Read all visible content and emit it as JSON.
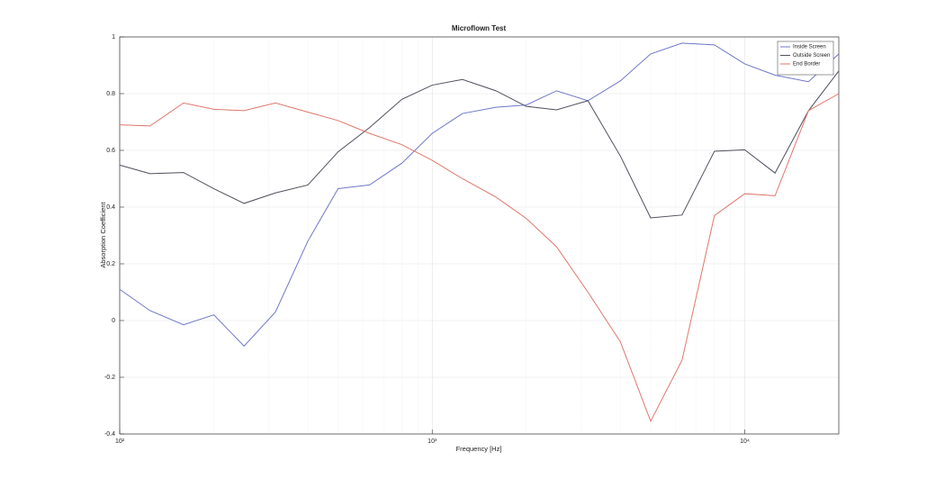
{
  "chart_data": {
    "type": "line",
    "title": "Microflown Test",
    "xlabel": "Frequency [Hz]",
    "ylabel": "Absorption Coefficient",
    "xscale": "log",
    "grid": true,
    "legend": "upper right",
    "x": [
      100,
      125,
      160,
      200,
      250,
      315,
      400,
      500,
      630,
      800,
      1000,
      1250,
      1600,
      2000,
      2500,
      3150,
      4000,
      5000,
      6300,
      8000,
      10000,
      12500,
      16000,
      20000
    ],
    "series": [
      {
        "name": "Inside Screen",
        "color": "#6e76c9",
        "values": [
          0.11,
          0.035,
          -0.015,
          0.02,
          -0.09,
          0.03,
          0.28,
          0.465,
          0.478,
          0.555,
          0.66,
          0.73,
          0.752,
          0.76,
          0.81,
          0.775,
          0.845,
          0.94,
          0.978,
          0.972,
          0.905,
          0.865,
          0.842,
          0.94
        ]
      },
      {
        "name": "Outside Screen",
        "color": "#4d4f5c",
        "values": [
          0.548,
          0.518,
          0.522,
          0.465,
          0.413,
          0.45,
          0.478,
          0.595,
          0.68,
          0.78,
          0.83,
          0.85,
          0.81,
          0.755,
          0.743,
          0.775,
          0.58,
          0.362,
          0.372,
          0.597,
          0.602,
          0.52,
          0.74,
          0.88
        ]
      },
      {
        "name": "End Border",
        "color": "#e0766c",
        "values": [
          0.69,
          0.686,
          0.767,
          0.745,
          0.74,
          0.767,
          0.735,
          0.705,
          0.66,
          0.62,
          0.565,
          0.5,
          0.435,
          0.36,
          0.26,
          0.1,
          -0.075,
          -0.355,
          -0.14,
          0.37,
          0.447,
          0.44,
          0.74,
          0.8
        ]
      }
    ],
    "xlim": [
      100,
      20000
    ],
    "xticks": [
      {
        "value": 100,
        "label": "10²"
      },
      {
        "value": 1000,
        "label": "10³"
      },
      {
        "value": 10000,
        "label": "10⁴"
      }
    ],
    "xminorticks": [
      200,
      300,
      400,
      500,
      600,
      700,
      800,
      900,
      2000,
      3000,
      4000,
      5000,
      6000,
      7000,
      8000,
      9000
    ],
    "ylim": [
      -0.4,
      1
    ],
    "yticks": [
      -0.4,
      -0.2,
      0,
      0.2,
      0.4,
      0.6,
      0.8,
      1
    ]
  }
}
